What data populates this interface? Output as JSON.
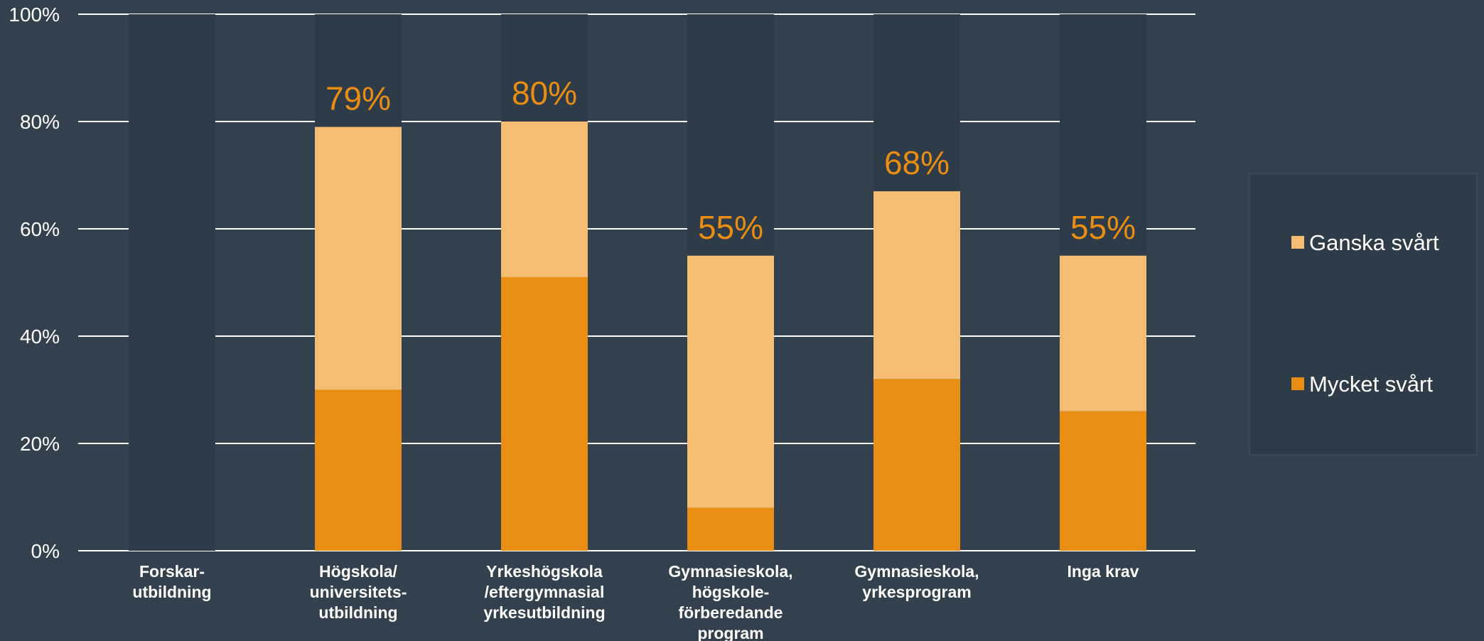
{
  "chart_data": {
    "type": "bar",
    "stacked": true,
    "categories": [
      [
        "Forskar-",
        "utbildning"
      ],
      [
        "Högskola/",
        "universitets-",
        "utbildning"
      ],
      [
        "Yrkeshögskola",
        "/eftergymnasial",
        "yrkesutbildning"
      ],
      [
        "Gymnasieskola,",
        "högskole-",
        "förberedande",
        "program"
      ],
      [
        "Gymnasieskola,",
        "yrkesprogram"
      ],
      [
        "Inga krav"
      ]
    ],
    "series": [
      {
        "name": "Mycket svårt",
        "color": "#e98e12",
        "values": [
          0,
          30,
          51,
          8,
          32,
          26
        ]
      },
      {
        "name": "Ganska svårt",
        "color": "#f4bd71",
        "values": [
          0,
          49,
          29,
          47,
          35,
          29
        ]
      }
    ],
    "total_labels": [
      "",
      "79%",
      "80%",
      "55%",
      "68%",
      "55%"
    ],
    "total_label_color": "#e98e12",
    "background_bar_color": "#2e3b48",
    "ylim": [
      0,
      100
    ],
    "yticks": [
      0,
      20,
      40,
      60,
      80,
      100
    ],
    "ytick_labels": [
      "0%",
      "20%",
      "40%",
      "60%",
      "80%",
      "100%"
    ],
    "grid": true,
    "legend": {
      "placement": "right",
      "entries": [
        {
          "label": "Ganska svårt",
          "color": "#f4bd71"
        },
        {
          "label": "Mycket svårt",
          "color": "#e98e12"
        }
      ]
    }
  }
}
